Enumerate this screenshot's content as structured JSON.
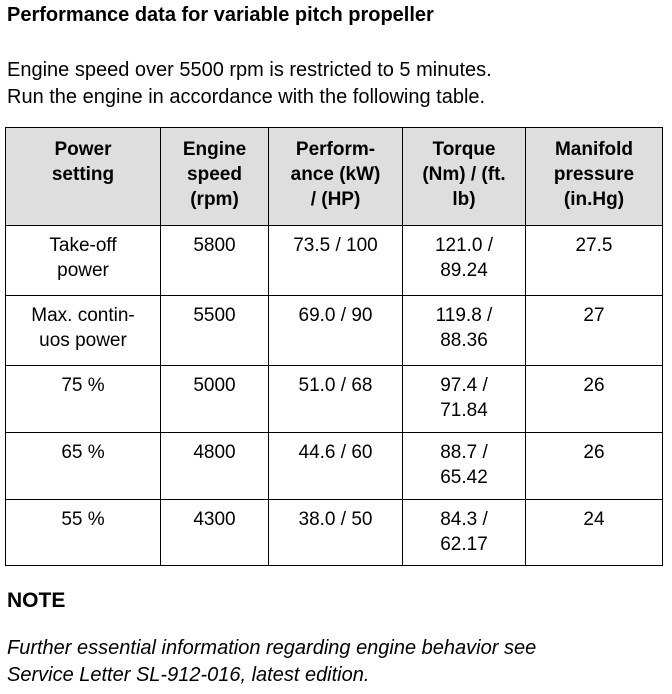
{
  "title": "Performance data for variable pitch propeller",
  "intro": [
    "Engine speed over 5500 rpm is restricted to 5 minutes.",
    "Run the engine in accordance with the following table."
  ],
  "table": {
    "headers": [
      [
        "Power",
        "setting"
      ],
      [
        "Engine",
        "speed",
        "(rpm)"
      ],
      [
        "Perform-",
        "ance (kW)",
        "/ (HP)"
      ],
      [
        "Torque",
        "(Nm) / (ft.",
        "lb)"
      ],
      [
        "Manifold",
        "pressure",
        "(in.Hg)"
      ]
    ],
    "rows": [
      [
        [
          "Take-off",
          "power"
        ],
        [
          "5800"
        ],
        [
          "73.5 / 100"
        ],
        [
          "121.0 /",
          "89.24"
        ],
        [
          "27.5"
        ]
      ],
      [
        [
          "Max. contin-",
          "uos power"
        ],
        [
          "5500"
        ],
        [
          "69.0 / 90"
        ],
        [
          "119.8 /",
          "88.36"
        ],
        [
          "27"
        ]
      ],
      [
        [
          "75 %"
        ],
        [
          "5000"
        ],
        [
          "51.0 / 68"
        ],
        [
          "97.4 /",
          "71.84"
        ],
        [
          "26"
        ]
      ],
      [
        [
          "65 %"
        ],
        [
          "4800"
        ],
        [
          "44.6 / 60"
        ],
        [
          "88.7 /",
          "65.42"
        ],
        [
          "26"
        ]
      ],
      [
        [
          "55 %"
        ],
        [
          "4300"
        ],
        [
          "38.0 / 50"
        ],
        [
          "84.3 /",
          "62.17"
        ],
        [
          "24"
        ]
      ]
    ]
  },
  "note": {
    "heading": "NOTE",
    "lines": [
      "Further essential information regarding engine behavior see",
      "Service Letter SL-912-016, latest edition."
    ]
  }
}
